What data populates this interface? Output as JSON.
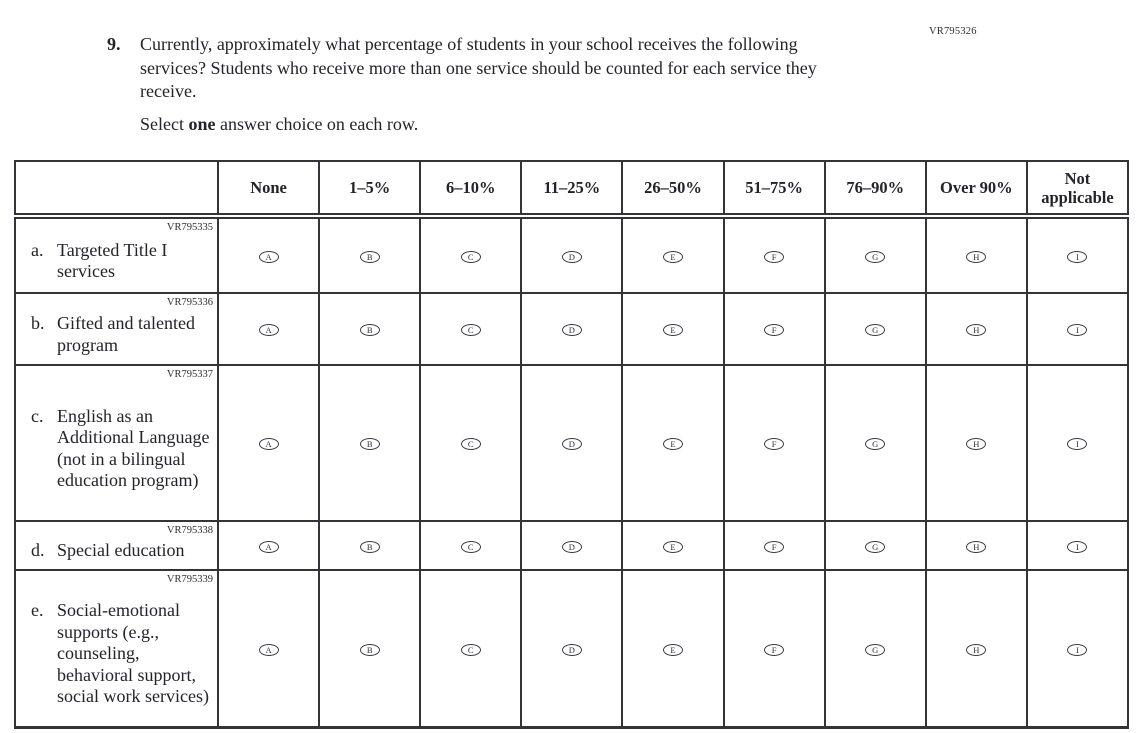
{
  "page": {
    "form_code": "VR795326",
    "question": {
      "number": "9.",
      "text": "Currently, approximately what percentage of students in your school receives the following services? Students who receive more than one service should be counted for each service they receive.",
      "instruction_prefix": "Select ",
      "instruction_bold": "one",
      "instruction_suffix": " answer choice on each row."
    }
  },
  "table": {
    "columns": [
      "None",
      "1–5%",
      "6–10%",
      "11–25%",
      "26–50%",
      "51–75%",
      "76–90%",
      "Over 90%",
      "Not applicable"
    ],
    "rows": [
      {
        "code": "VR795335",
        "letter": "a.",
        "label": "Targeted Title I services",
        "options": [
          "A",
          "B",
          "C",
          "D",
          "E",
          "F",
          "G",
          "H",
          "I"
        ]
      },
      {
        "code": "VR795336",
        "letter": "b.",
        "label": "Gifted and talented program",
        "options": [
          "A",
          "B",
          "C",
          "D",
          "E",
          "F",
          "G",
          "H",
          "I"
        ]
      },
      {
        "code": "VR795337",
        "letter": "c.",
        "label": "English as an Additional Language (not in a bilingual education program)",
        "options": [
          "A",
          "B",
          "C",
          "D",
          "E",
          "F",
          "G",
          "H",
          "I"
        ]
      },
      {
        "code": "VR795338",
        "letter": "d.",
        "label": "Special education",
        "options": [
          "A",
          "B",
          "C",
          "D",
          "E",
          "F",
          "G",
          "H",
          "I"
        ]
      },
      {
        "code": "VR795339",
        "letter": "e.",
        "label": "Social-emotional supports (e.g., counseling, behavioral support, social work services)",
        "options": [
          "A",
          "B",
          "C",
          "D",
          "E",
          "F",
          "G",
          "H",
          "I"
        ]
      }
    ]
  },
  "colors": {
    "background": "#ffffff",
    "text": "#23232b",
    "border": "#33333a"
  }
}
